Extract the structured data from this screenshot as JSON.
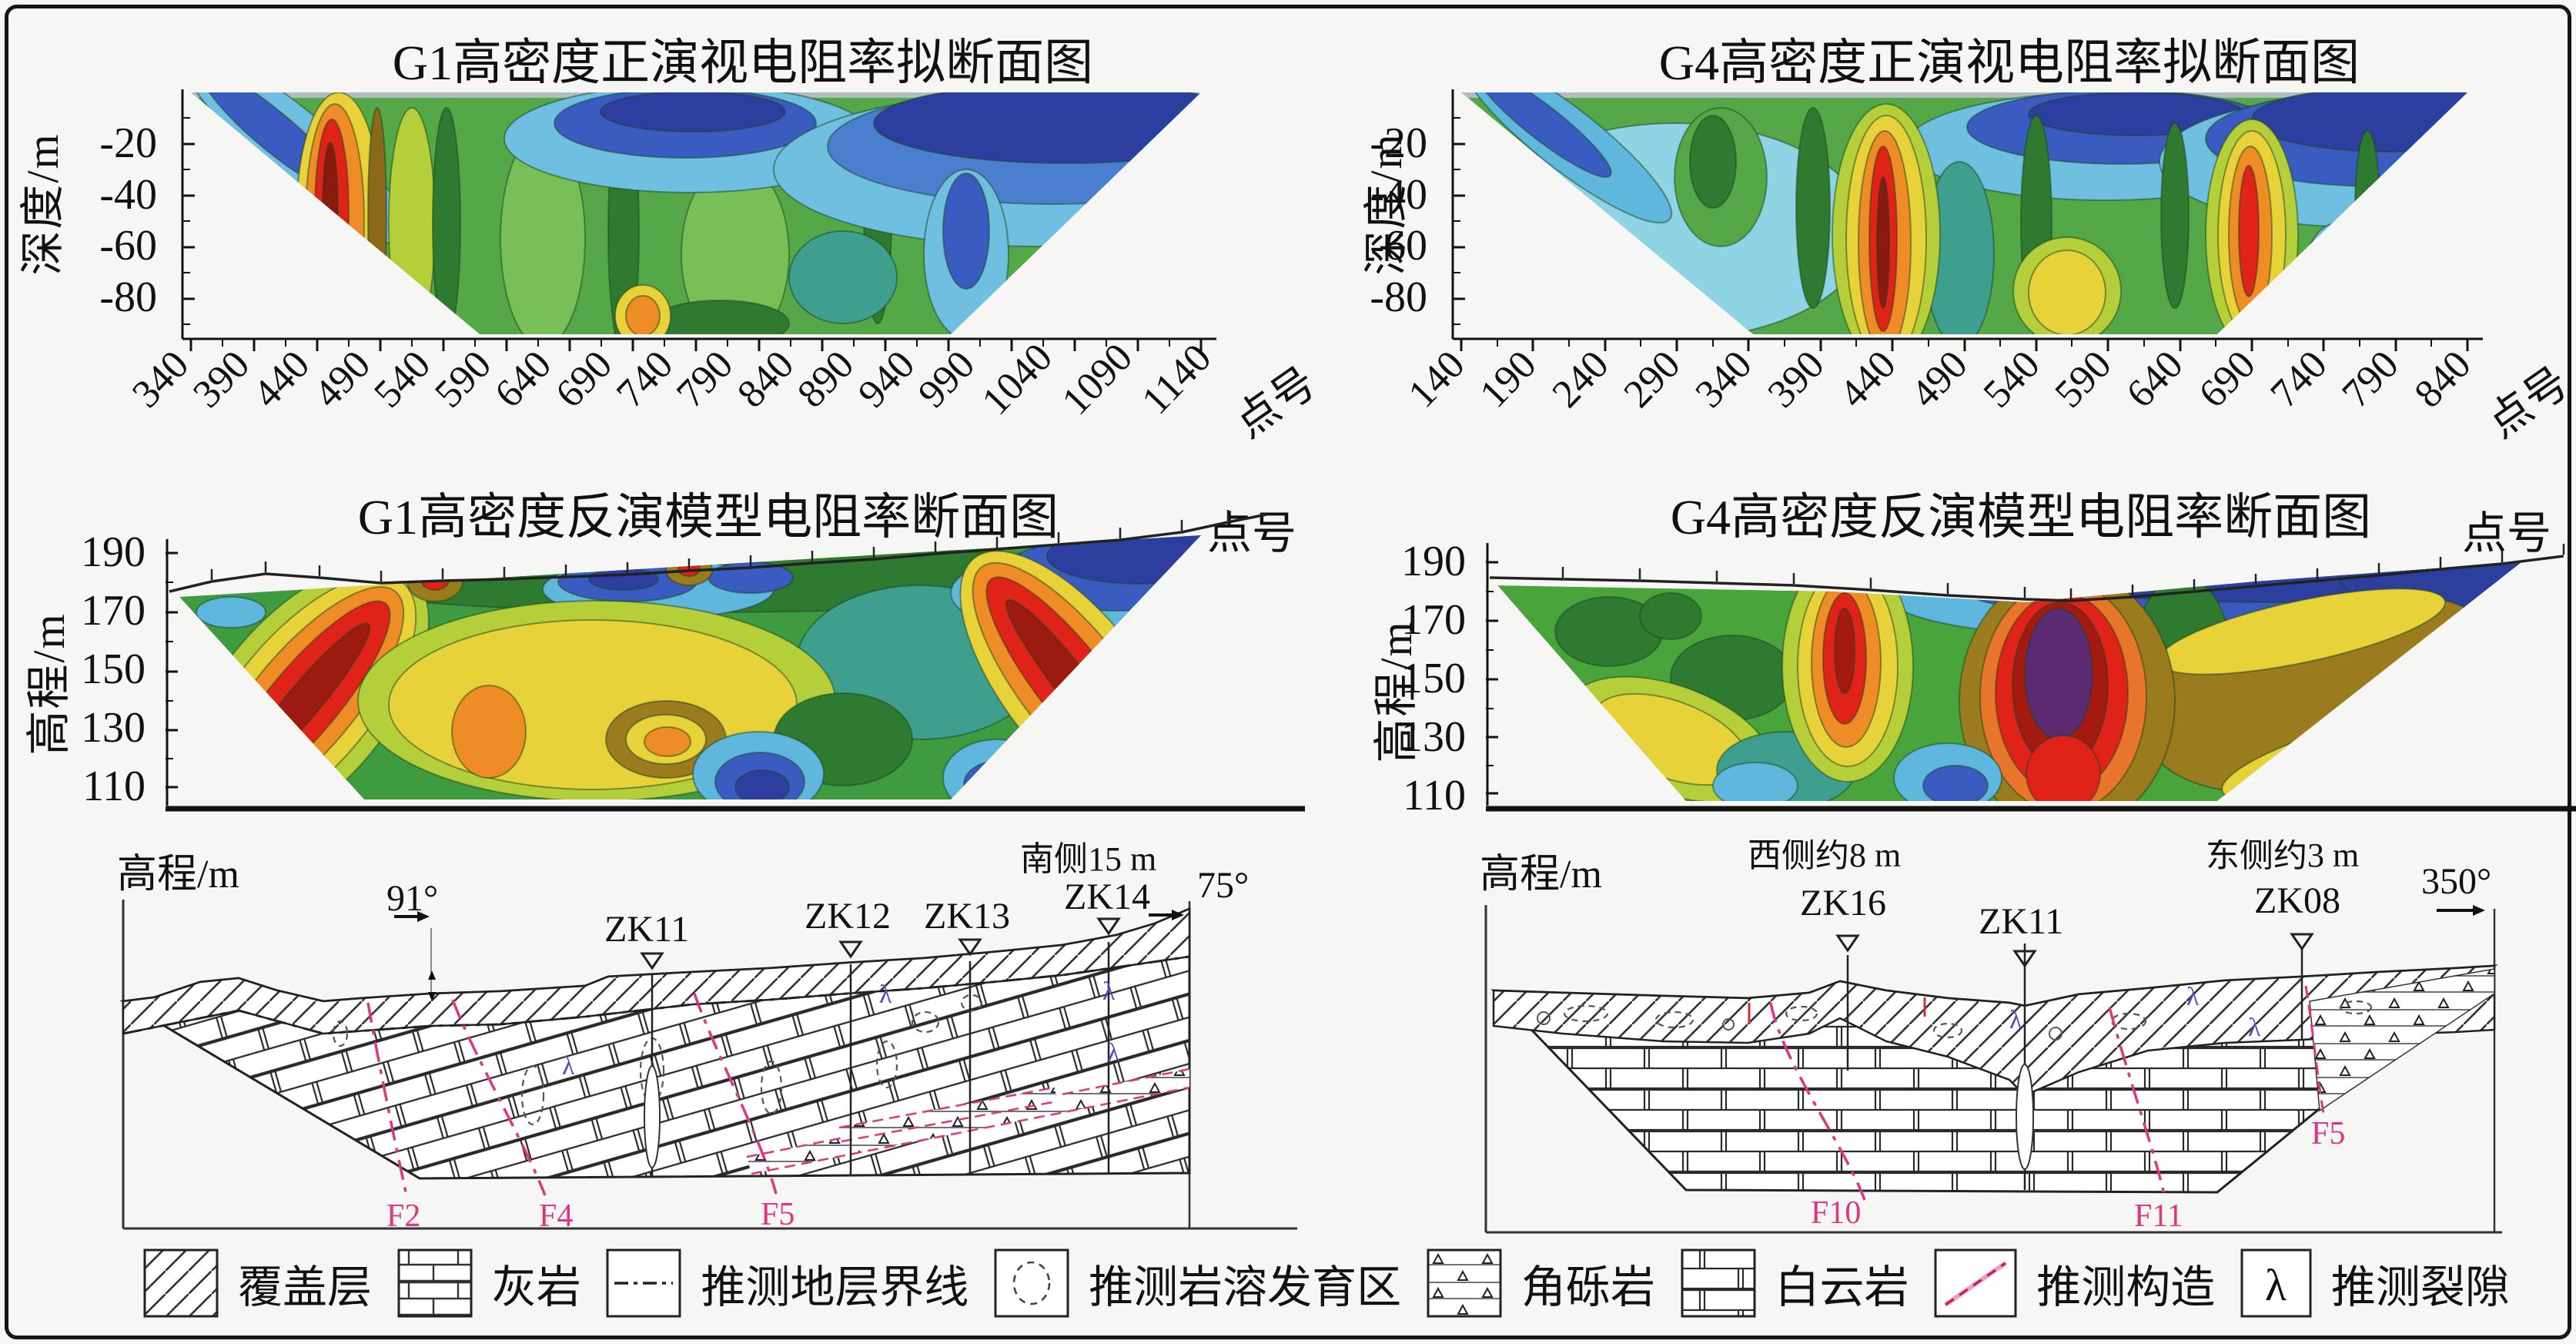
{
  "figure": {
    "background": "#f6f6f4",
    "frame_color": "#161616"
  },
  "palette": {
    "dark_blue": "#2c3f9e",
    "blue": "#3a5cc0",
    "medium_blue": "#4a7fd0",
    "light_blue": "#5fb7de",
    "cyan": "#8fd4e4",
    "teal": "#3f9f8f",
    "dark_green": "#2e7a30",
    "green": "#49a43c",
    "light_green": "#79bf58",
    "yellow_green": "#b5cf3a",
    "yellow": "#e8d23a",
    "orange": "#ee8c26",
    "deep_orange": "#e8762a",
    "red": "#df2318",
    "dark_red": "#a51a10",
    "brown": "#9a7b1e",
    "purple": "#5b2a70",
    "fault_pink": "#e0357f"
  },
  "panels": {
    "g1_forward": {
      "title": "G1高密度正演视电阻率拟断面图",
      "y_axis_label": "深度/m",
      "y_ticks": [
        "-20",
        "-40",
        "-60",
        "-80"
      ],
      "x_ticks": [
        "340",
        "390",
        "440",
        "490",
        "540",
        "590",
        "640",
        "690",
        "740",
        "790",
        "840",
        "890",
        "940",
        "990",
        "1040",
        "1090",
        "1140"
      ],
      "x_axis_label": "点号"
    },
    "g4_forward": {
      "title": "G4高密度正演视电阻率拟断面图",
      "y_axis_label": "深度/m",
      "y_ticks": [
        "-20",
        "-40",
        "-60",
        "-80"
      ],
      "x_ticks": [
        "140",
        "190",
        "240",
        "290",
        "340",
        "390",
        "440",
        "490",
        "540",
        "590",
        "640",
        "690",
        "740",
        "790",
        "840"
      ],
      "x_axis_label": "点号"
    },
    "g1_inversion": {
      "title": "G1高密度反演模型电阻率断面图",
      "x_axis_label": "点号",
      "y_axis_label": "高程/m",
      "y_ticks": [
        "190",
        "170",
        "150",
        "130",
        "110"
      ]
    },
    "g4_inversion": {
      "title": "G4高密度反演模型电阻率断面图",
      "x_axis_label": "点号",
      "y_axis_label": "高程/m",
      "y_ticks": [
        "190",
        "170",
        "150",
        "130",
        "110"
      ]
    },
    "g1_geology": {
      "y_axis_label": "高程/m",
      "dip_left": "91°",
      "dip_right": "75°",
      "offset_note": "南侧15 m",
      "boreholes": [
        "ZK11",
        "ZK12",
        "ZK13",
        "ZK14"
      ],
      "faults": [
        "F2",
        "F4",
        "F5"
      ]
    },
    "g4_geology": {
      "y_axis_label": "高程/m",
      "west_note": "西侧约8 m",
      "east_note": "东侧约3 m",
      "azimuth": "350°",
      "boreholes": [
        "ZK16",
        "ZK11",
        "ZK08"
      ],
      "faults": [
        "F10",
        "F11",
        "F5"
      ]
    }
  },
  "legend": {
    "fissure_glyph": "λ",
    "items": [
      {
        "symbol": "cover-hatch",
        "label": "覆盖层"
      },
      {
        "symbol": "limestone-brick",
        "label": "灰岩"
      },
      {
        "symbol": "stratum-boundary-line",
        "label": "推测地层界线"
      },
      {
        "symbol": "karst-zone-dashed-ellipse",
        "label": "推测岩溶发育区"
      },
      {
        "symbol": "breccia-triangles",
        "label": "角砾岩"
      },
      {
        "symbol": "dolomite-brick",
        "label": "白云岩"
      },
      {
        "symbol": "inferred-fault-line",
        "label": "推测构造"
      },
      {
        "symbol": "inferred-fissure-lambda",
        "label": "推测裂隙"
      }
    ]
  },
  "chart_data": [
    {
      "type": "heatmap",
      "title": "G1高密度正演视电阻率拟断面图",
      "xlabel": "点号",
      "ylabel": "深度/m",
      "x_ticks": [
        340,
        390,
        440,
        490,
        540,
        590,
        640,
        690,
        740,
        790,
        840,
        890,
        940,
        990,
        1040,
        1090,
        1140
      ],
      "y_ticks": [
        -20,
        -40,
        -60,
        -80
      ],
      "x_range": [
        315,
        1165
      ],
      "depth_range": [
        0,
        -95
      ],
      "shape": "inverted-trapezoid contour section",
      "grid": false,
      "legend_position": "none",
      "anomalies": [
        {
          "feature": "high-resistivity striped zone (yellow-orange-red)",
          "x_range": [
            430,
            540
          ],
          "depth_range": [
            -5,
            -90
          ]
        },
        {
          "feature": "low-resistivity zone (dark blue)",
          "x_range": [
            850,
            1140
          ],
          "depth_range": [
            0,
            -35
          ]
        },
        {
          "feature": "low-resistivity pocket (blue)",
          "x_range": [
            560,
            680
          ],
          "depth_range": [
            0,
            -20
          ]
        },
        {
          "feature": "narrow vertical dark-green conductive bands",
          "x_range": [
            540,
            900
          ],
          "depth_range": [
            0,
            -90
          ]
        },
        {
          "feature": "background medium resistivity (green)",
          "x_range": [
            340,
            1140
          ],
          "depth_range": [
            0,
            -95
          ]
        }
      ]
    },
    {
      "type": "heatmap",
      "title": "G4高密度正演视电阻率拟断面图",
      "xlabel": "点号",
      "ylabel": "深度/m",
      "x_ticks": [
        140,
        190,
        240,
        290,
        340,
        390,
        440,
        490,
        540,
        590,
        640,
        690,
        740,
        790,
        840
      ],
      "y_ticks": [
        -20,
        -40,
        -60,
        -80
      ],
      "x_range": [
        115,
        865
      ],
      "depth_range": [
        0,
        -90
      ],
      "shape": "inverted-trapezoid contour section",
      "grid": false,
      "legend_position": "none",
      "anomalies": [
        {
          "feature": "high-resistivity column (orange-red core)",
          "x_range": [
            410,
            450
          ],
          "depth_range": [
            -20,
            -85
          ]
        },
        {
          "feature": "high-resistivity column (red, hatched core)",
          "x_range": [
            680,
            740
          ],
          "depth_range": [
            -25,
            -80
          ]
        },
        {
          "feature": "low-resistivity zone (dark blue)",
          "x_range": [
            700,
            840
          ],
          "depth_range": [
            0,
            -25
          ]
        },
        {
          "feature": "low-resistivity patch (blue)",
          "x_range": [
            430,
            560
          ],
          "depth_range": [
            0,
            -20
          ]
        },
        {
          "feature": "broad cyan low zone",
          "x_range": [
            170,
            360
          ],
          "depth_range": [
            -10,
            -80
          ]
        }
      ]
    },
    {
      "type": "heatmap",
      "title": "G1高密度反演模型电阻率断面图",
      "xlabel": "点号",
      "ylabel": "高程/m",
      "y_ticks": [
        190,
        170,
        150,
        130,
        110
      ],
      "elevation_range": [
        95,
        195
      ],
      "shape": "trapezoid section under undulating topographic line with electrode ticks",
      "grid": false,
      "legend_position": "none",
      "anomalies": [
        {
          "feature": "high-resistivity flank (yellow-orange-red)",
          "position": "left slope, full depth"
        },
        {
          "feature": "high-resistivity flank (yellow-orange-red)",
          "position": "right slope, full depth"
        },
        {
          "feature": "low-resistivity (blue/dark blue) cap above right flank",
          "position": "upper right, elev 170-185"
        },
        {
          "feature": "yellow-orange-brown high zone",
          "position": "center, elev 105-140"
        },
        {
          "feature": "blue low pockets",
          "position": "bottom center, elev 95-110"
        },
        {
          "feature": "green/dark-green background with blue patches near surface",
          "position": "upper center"
        }
      ]
    },
    {
      "type": "heatmap",
      "title": "G4高密度反演模型电阻率断面图",
      "xlabel": "点号",
      "ylabel": "高程/m",
      "y_ticks": [
        190,
        170,
        150,
        130,
        110
      ],
      "elevation_range": [
        105,
        196
      ],
      "shape": "trapezoid section under gently dipping topographic line with electrode ticks",
      "grid": false,
      "legend_position": "none",
      "anomalies": [
        {
          "feature": "vertical red high-resistivity anomaly",
          "position": "center-left, elev 120-180"
        },
        {
          "feature": "major dark purple-red high-resistivity anomaly",
          "position": "center-right, elev 105-175"
        },
        {
          "feature": "brown-yellow high-resistivity zone",
          "position": "right third, elev 115-175"
        },
        {
          "feature": "dark blue low-resistivity band",
          "position": "along top surface, center to right"
        },
        {
          "feature": "green background with yellow band",
          "position": "left third"
        }
      ]
    }
  ]
}
